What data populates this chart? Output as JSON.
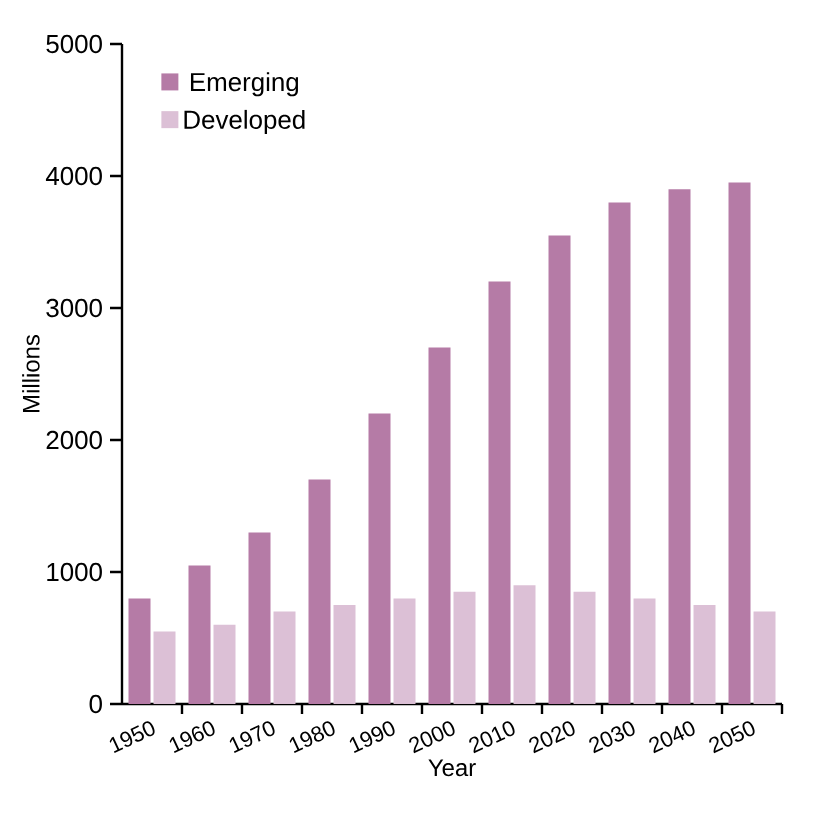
{
  "chart_data": {
    "type": "bar",
    "xlabel": "Year",
    "ylabel": "Millions",
    "categories": [
      "1950",
      "1960",
      "1970",
      "1980",
      "1990",
      "2000",
      "2010",
      "2020",
      "2030",
      "2040",
      "2050"
    ],
    "series": [
      {
        "name": "Emerging",
        "color": "#b57ba6",
        "values": [
          800,
          1050,
          1300,
          1700,
          2200,
          2700,
          3200,
          3550,
          3800,
          3900,
          3950
        ]
      },
      {
        "name": "Developed",
        "color": "#dcc0d6",
        "values": [
          550,
          600,
          700,
          750,
          800,
          850,
          900,
          850,
          800,
          750,
          700
        ]
      }
    ],
    "ylim": [
      0,
      5000
    ],
    "yticks": [
      0,
      1000,
      2000,
      3000,
      4000,
      5000
    ],
    "grid": false,
    "legend": "top left"
  }
}
